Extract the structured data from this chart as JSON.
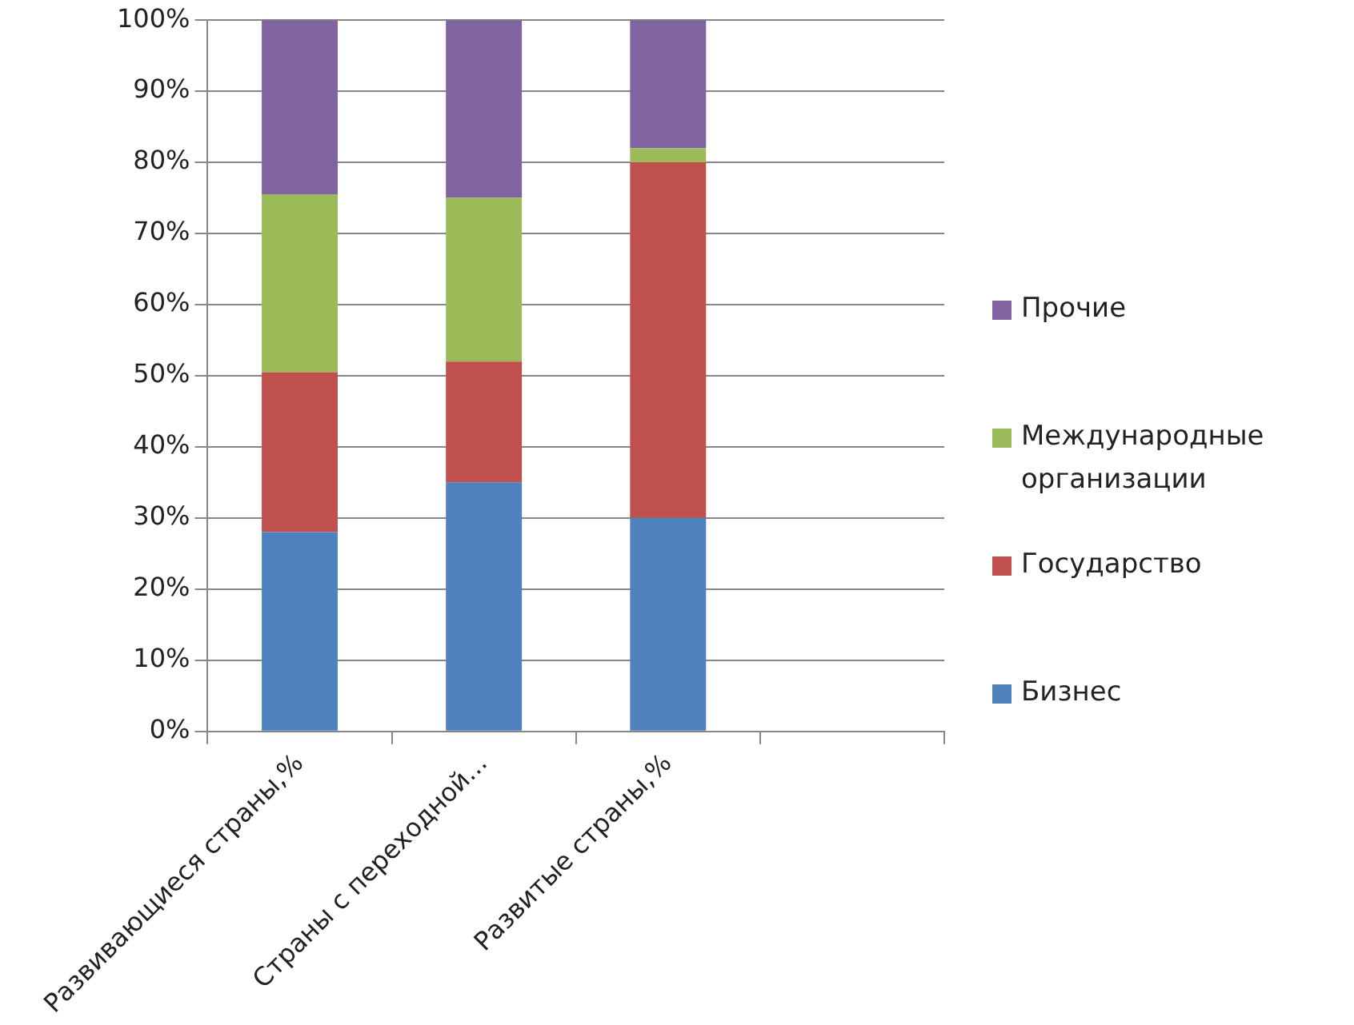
{
  "chart_data": {
    "type": "bar",
    "stacked": true,
    "categories": [
      "Развивающиеся страны,%",
      "Страны с переходной...",
      "Развитые страны,%",
      null
    ],
    "series": [
      {
        "name": "Бизнес",
        "color": "#4f81bd",
        "values": [
          28,
          35,
          30,
          null
        ]
      },
      {
        "name": "Государство",
        "color": "#c0504d",
        "values": [
          22.5,
          17,
          50,
          null
        ]
      },
      {
        "name": "Международные организации",
        "color": "#9bbb59",
        "values": [
          25,
          23,
          2,
          null
        ]
      },
      {
        "name": "Прочие",
        "color": "#8064a2",
        "values": [
          24.5,
          25,
          18,
          null
        ]
      }
    ],
    "ylim": [
      0,
      100
    ],
    "yticks": [
      {
        "value": 0,
        "label": "0%"
      },
      {
        "value": 10,
        "label": "10%"
      },
      {
        "value": 20,
        "label": "20%"
      },
      {
        "value": 30,
        "label": "30%"
      },
      {
        "value": 40,
        "label": "40%"
      },
      {
        "value": 50,
        "label": "50%"
      },
      {
        "value": 60,
        "label": "60%"
      },
      {
        "value": 70,
        "label": "70%"
      },
      {
        "value": 80,
        "label": "80%"
      },
      {
        "value": 90,
        "label": "90%"
      },
      {
        "value": 100,
        "label": "100%"
      }
    ],
    "grid": "y",
    "legend": "right"
  }
}
